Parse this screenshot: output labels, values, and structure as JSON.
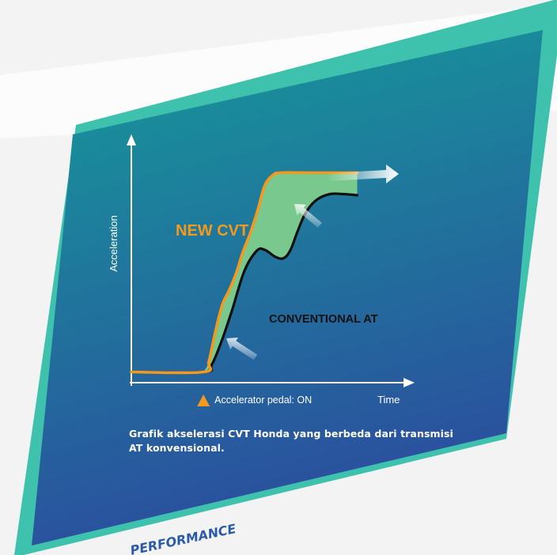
{
  "colors": {
    "panel_teal": "#3fc2ad",
    "panel_top": "#159c9a",
    "panel_bottom": "#2b4e9e",
    "cvt_orange": "#f39a1e",
    "gain_fill": "#79c98f",
    "conventional_black": "#111111",
    "arrow_white": "#ffffff"
  },
  "chart_data": {
    "type": "line",
    "xlabel": "Time",
    "ylabel": "Acceleration",
    "x_range": [
      0,
      10
    ],
    "y_range": [
      0,
      10
    ],
    "ticks": "none",
    "grid": false,
    "marker_label": "Accelerator pedal: ON",
    "marker_x": 2.65,
    "series": [
      {
        "name": "NEW CVT",
        "color": "#f39a1e",
        "points": [
          [
            0,
            0.45
          ],
          [
            2.65,
            0.45
          ],
          [
            2.85,
            0.9
          ],
          [
            3.1,
            2.2
          ],
          [
            3.35,
            3.3
          ],
          [
            3.6,
            3.9
          ],
          [
            3.85,
            4.6
          ],
          [
            4.1,
            5.5
          ],
          [
            4.4,
            6.4
          ],
          [
            4.65,
            7.3
          ],
          [
            4.9,
            8.3
          ],
          [
            5.2,
            8.75
          ],
          [
            5.5,
            8.85
          ],
          [
            6.5,
            8.85
          ],
          [
            7.5,
            8.85
          ],
          [
            8.3,
            8.85
          ]
        ]
      },
      {
        "name": "CONVENTIONAL AT",
        "color": "#111111",
        "points": [
          [
            0,
            0.45
          ],
          [
            2.65,
            0.45
          ],
          [
            2.95,
            0.75
          ],
          [
            3.3,
            1.7
          ],
          [
            3.7,
            3.05
          ],
          [
            4.15,
            4.7
          ],
          [
            4.6,
            5.55
          ],
          [
            4.9,
            5.6
          ],
          [
            5.3,
            5.3
          ],
          [
            5.6,
            5.25
          ],
          [
            5.85,
            5.6
          ],
          [
            6.1,
            6.35
          ],
          [
            6.4,
            7.15
          ],
          [
            6.8,
            7.7
          ],
          [
            7.3,
            7.95
          ],
          [
            7.8,
            7.95
          ],
          [
            8.3,
            7.9
          ]
        ]
      }
    ]
  },
  "caption": "Grafik akselerasi CVT Honda yang berbeda dari transmisi AT konvensional.",
  "footer_heading": "PERFORMANCE"
}
